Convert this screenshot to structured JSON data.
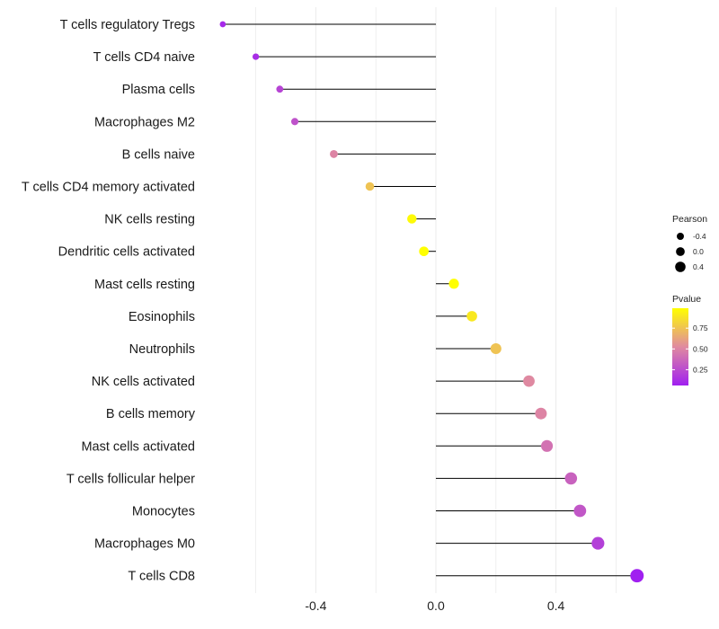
{
  "chart_data": {
    "type": "lollipop",
    "title": "",
    "xlabel": "",
    "ylabel": "",
    "xlim": [
      -0.72,
      0.7
    ],
    "x_ticks": [
      -0.4,
      0.0,
      0.4
    ],
    "x_tick_labels": [
      "-0.4",
      "0.0",
      "0.4"
    ],
    "grid": true,
    "categories": [
      "T cells regulatory  Tregs",
      "T cells CD4 naive",
      "Plasma cells",
      "Macrophages M2",
      "B cells naive",
      "T cells CD4 memory activated",
      "NK cells resting",
      "Dendritic cells activated",
      "Mast cells resting",
      "Eosinophils",
      "Neutrophils",
      "NK cells activated",
      "B cells memory",
      "Mast cells activated",
      "T cells follicular helper",
      "Monocytes",
      "Macrophages M0",
      "T cells CD8"
    ],
    "pearson": [
      -0.71,
      -0.6,
      -0.52,
      -0.47,
      -0.34,
      -0.22,
      -0.08,
      -0.04,
      0.06,
      0.12,
      0.2,
      0.31,
      0.35,
      0.37,
      0.45,
      0.48,
      0.54,
      0.67
    ],
    "pvalue": [
      0.1,
      0.12,
      0.22,
      0.28,
      0.5,
      0.75,
      0.97,
      0.99,
      0.99,
      0.9,
      0.75,
      0.52,
      0.5,
      0.42,
      0.35,
      0.3,
      0.2,
      0.06
    ],
    "legend": {
      "size": {
        "title": "Pearson",
        "labels": [
          "-0.4",
          "0.0",
          "0.4"
        ],
        "values": [
          -0.4,
          0.0,
          0.4
        ]
      },
      "color": {
        "title": "Pvalue",
        "labels": [
          "0.75",
          "0.50",
          "0.25"
        ],
        "values": [
          0.75,
          0.5,
          0.25
        ],
        "range": [
          0.06,
          0.99
        ]
      },
      "placement": "right"
    }
  },
  "colors": {
    "low": "#a020f0",
    "mid": "#e08aa0",
    "high": "#ffff00",
    "grid": "#ebebeb",
    "stem": "#000000"
  }
}
